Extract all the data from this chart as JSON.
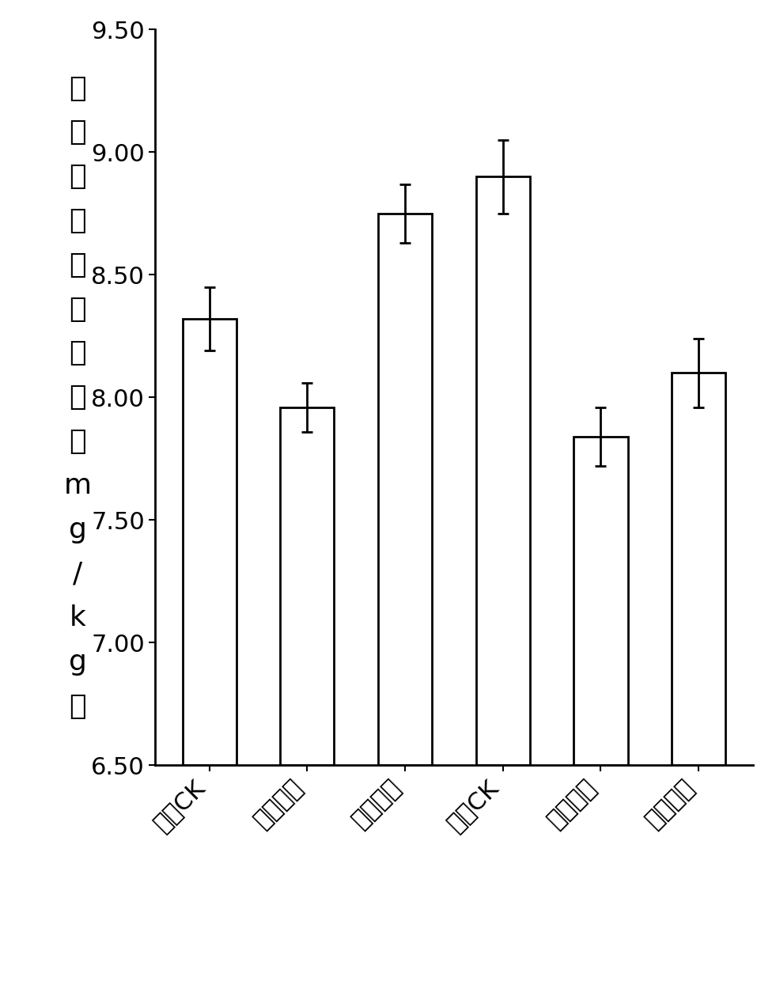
{
  "categories": [
    "农田CK",
    "农田砧木",
    "农田接穗",
    "矿山CK",
    "矿山砧木",
    "矿山接穗"
  ],
  "values": [
    8.32,
    7.96,
    8.75,
    8.9,
    7.84,
    8.1
  ],
  "errors": [
    0.13,
    0.1,
    0.12,
    0.15,
    0.12,
    0.14
  ],
  "bar_color": "#ffffff",
  "bar_edgecolor": "#000000",
  "ylabel_chars": [
    "土",
    "壤",
    "有",
    "效",
    "态",
    "镉",
    "含",
    "量",
    "（",
    "m",
    "g",
    "/",
    "k",
    "g",
    "）"
  ],
  "ylim": [
    6.5,
    9.5
  ],
  "yticks": [
    6.5,
    7.0,
    7.5,
    8.0,
    8.5,
    9.0,
    9.5
  ],
  "ytick_labels": [
    "6.50",
    "7.00",
    "7.50",
    "8.00",
    "8.50",
    "9.00",
    "9.50"
  ],
  "bar_width": 0.55,
  "figsize": [
    9.81,
    12.4
  ],
  "dpi": 100,
  "bar_linewidth": 2.0,
  "capsize": 5,
  "error_linewidth": 2.0,
  "ylabel_fontsize": 26,
  "tick_fontsize": 22,
  "xtick_rotation": 45,
  "xtick_ha": "right",
  "spine_linewidth": 2.0
}
